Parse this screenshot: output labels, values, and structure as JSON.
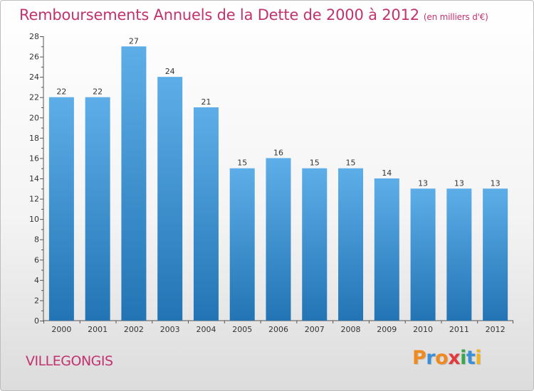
{
  "title": "Remboursements Annuels de la Dette de 2000 à 2012",
  "subtitle": "(en milliers d'€)",
  "place": "VILLEGONGIS",
  "brand": {
    "letters": [
      "P",
      "r",
      "o",
      "x",
      "i",
      "t",
      "i"
    ],
    "colors": [
      "#f08a1e",
      "#3a8fd6",
      "#f08a1e",
      "#e23a3a",
      "#3aa84a",
      "#3a8fd6",
      "#f2b21e"
    ]
  },
  "colors": {
    "title": "#c2326f",
    "bar_top": "#5daee8",
    "bar_bottom": "#2274b4"
  },
  "chart_data": {
    "type": "bar",
    "title": "Remboursements Annuels de la Dette de 2000 à 2012",
    "xlabel": "",
    "ylabel": "",
    "categories": [
      "2000",
      "2001",
      "2002",
      "2003",
      "2004",
      "2005",
      "2006",
      "2007",
      "2008",
      "2009",
      "2010",
      "2011",
      "2012"
    ],
    "values": [
      22,
      22,
      27,
      24,
      21,
      15,
      16,
      15,
      15,
      14,
      13,
      13,
      13
    ],
    "ylim": [
      0,
      28
    ],
    "yticks": [
      0,
      2,
      4,
      6,
      8,
      10,
      12,
      14,
      16,
      18,
      20,
      22,
      24,
      26,
      28
    ],
    "grid": false,
    "legend": "none"
  }
}
